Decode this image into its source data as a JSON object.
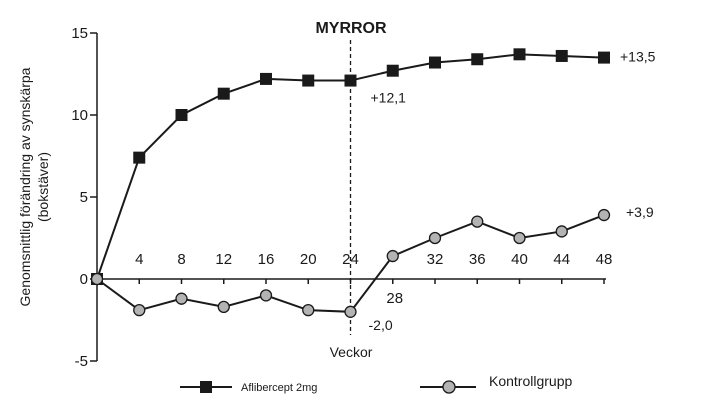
{
  "chart_data": {
    "type": "line",
    "title": "MYRROR",
    "xlabel": "Veckor",
    "ylabel_line1": "Genomsnittlig förändring av synskärpa",
    "ylabel_line2": "(bokstäver)",
    "xlim": [
      0,
      48
    ],
    "ylim": [
      -5,
      15
    ],
    "x_ticks": [
      4,
      8,
      12,
      16,
      20,
      24,
      28,
      32,
      36,
      40,
      44,
      48
    ],
    "y_ticks": [
      -5,
      0,
      5,
      10,
      15
    ],
    "vline_x": 24,
    "series": [
      {
        "name": "Aflibercept 2mg",
        "marker": "square",
        "color": "#1a1a1a",
        "fill": "#1a1a1a",
        "x": [
          0,
          4,
          8,
          12,
          16,
          20,
          24,
          28,
          32,
          36,
          40,
          44,
          48
        ],
        "values": [
          0,
          7.4,
          10.0,
          11.3,
          12.2,
          12.1,
          12.1,
          12.7,
          13.2,
          13.4,
          13.7,
          13.6,
          13.5
        ]
      },
      {
        "name": "Kontrollgrupp",
        "marker": "circle",
        "color": "#1a1a1a",
        "fill": "#b3b3b3",
        "x": [
          0,
          4,
          8,
          12,
          16,
          20,
          24,
          28,
          32,
          36,
          40,
          44,
          48
        ],
        "values": [
          0,
          -1.9,
          -1.2,
          -1.7,
          -1.0,
          -1.9,
          -2.0,
          1.4,
          2.5,
          3.5,
          2.5,
          2.9,
          3.9
        ]
      }
    ],
    "annotations": [
      {
        "text": "+13,5",
        "x": 48,
        "y": 13.5
      },
      {
        "text": "+12,1",
        "x": 24,
        "y": 12.1
      },
      {
        "text": "+3,9",
        "x": 48,
        "y": 3.9
      },
      {
        "text": "-2,0",
        "x": 24,
        "y": -2.0
      }
    ],
    "legend": {
      "position": "bottom",
      "entries": [
        {
          "label": "Aflibercept 2mg",
          "marker": "square"
        },
        {
          "label": "Kontrollgrupp",
          "marker": "circle"
        }
      ]
    }
  }
}
